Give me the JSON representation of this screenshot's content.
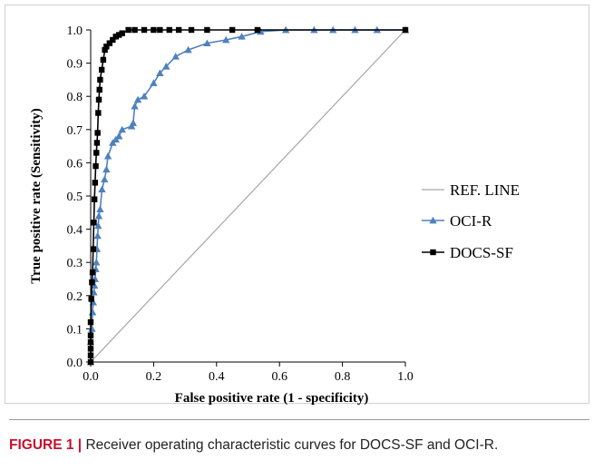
{
  "chart_data": {
    "type": "line",
    "title": "",
    "xlabel": "False positive rate (1 - specificity)",
    "ylabel": "True positive rate (Sensitivity)",
    "xlim": [
      0,
      1
    ],
    "ylim": [
      0,
      1
    ],
    "x_ticks": [
      "0.0",
      "0.2",
      "0.4",
      "0.6",
      "0.8",
      "1.0"
    ],
    "y_ticks": [
      "0.0",
      "0.1",
      "0.2",
      "0.3",
      "0.4",
      "0.5",
      "0.6",
      "0.7",
      "0.8",
      "0.9",
      "1.0"
    ],
    "grid": false,
    "legend_position": "right",
    "series": [
      {
        "name": "REF. LINE",
        "color": "#a6a6a6",
        "marker": "none",
        "x": [
          0,
          1
        ],
        "y": [
          0,
          1
        ]
      },
      {
        "name": "OCI-R",
        "color": "#4f81bd",
        "marker": "triangle",
        "x": [
          0,
          0,
          0.004,
          0.006,
          0.008,
          0.01,
          0.012,
          0.014,
          0.016,
          0.018,
          0.02,
          0.022,
          0.024,
          0.026,
          0.03,
          0.036,
          0.044,
          0.05,
          0.055,
          0.07,
          0.08,
          0.09,
          0.1,
          0.13,
          0.135,
          0.14,
          0.15,
          0.17,
          0.2,
          0.22,
          0.24,
          0.27,
          0.31,
          0.37,
          0.43,
          0.48,
          0.54,
          0.62,
          0.71,
          0.77,
          0.84,
          0.91,
          1.0
        ],
        "y": [
          0,
          0.06,
          0.1,
          0.15,
          0.18,
          0.21,
          0.23,
          0.25,
          0.28,
          0.3,
          0.34,
          0.38,
          0.41,
          0.44,
          0.46,
          0.52,
          0.55,
          0.58,
          0.62,
          0.66,
          0.67,
          0.68,
          0.7,
          0.71,
          0.72,
          0.77,
          0.79,
          0.8,
          0.84,
          0.87,
          0.89,
          0.92,
          0.94,
          0.96,
          0.97,
          0.98,
          0.995,
          1.0,
          1.0,
          1.0,
          1.0,
          1.0,
          1.0
        ]
      },
      {
        "name": "DOCS-SF",
        "color": "#000000",
        "marker": "square",
        "x": [
          0,
          0,
          0,
          0,
          0,
          0,
          0.002,
          0.004,
          0.006,
          0.008,
          0.01,
          0.012,
          0.014,
          0.016,
          0.018,
          0.02,
          0.022,
          0.024,
          0.026,
          0.028,
          0.03,
          0.035,
          0.04,
          0.045,
          0.05,
          0.06,
          0.07,
          0.08,
          0.09,
          0.1,
          0.12,
          0.14,
          0.17,
          0.2,
          0.22,
          0.25,
          0.28,
          0.32,
          0.37,
          0.45,
          0.53,
          1.0
        ],
        "y": [
          0,
          0.02,
          0.04,
          0.06,
          0.08,
          0.12,
          0.19,
          0.24,
          0.27,
          0.34,
          0.42,
          0.49,
          0.54,
          0.59,
          0.63,
          0.66,
          0.69,
          0.75,
          0.79,
          0.82,
          0.85,
          0.88,
          0.91,
          0.94,
          0.95,
          0.96,
          0.97,
          0.98,
          0.985,
          0.99,
          1.0,
          1.0,
          1.0,
          1.0,
          1.0,
          1.0,
          1.0,
          1.0,
          1.0,
          1.0,
          1.0,
          1.0
        ]
      }
    ]
  },
  "caption": {
    "label": "FIGURE 1 |",
    "text": " Receiver operating characteristic curves for DOCS-SF and OCI-R."
  },
  "colors": {
    "caption_label": "#c8102e",
    "axis": "#000000"
  }
}
